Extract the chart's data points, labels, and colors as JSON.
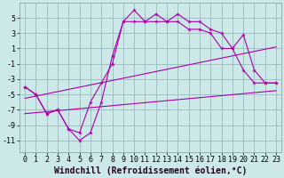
{
  "xlabel": "Windchill (Refroidissement éolien,°C)",
  "bg_color": "#cce8e8",
  "line_color": "#aa00aa",
  "grid_color": "#99bbbb",
  "xlim": [
    -0.5,
    23.5
  ],
  "ylim": [
    -12.5,
    7
  ],
  "yticks": [
    -11,
    -9,
    -7,
    -5,
    -3,
    -1,
    1,
    3,
    5
  ],
  "xticks": [
    0,
    1,
    2,
    3,
    4,
    5,
    6,
    7,
    8,
    9,
    10,
    11,
    12,
    13,
    14,
    15,
    16,
    17,
    18,
    19,
    20,
    21,
    22,
    23
  ],
  "line1_x": [
    0,
    1,
    2,
    3,
    4,
    5,
    6,
    7,
    8,
    9,
    10,
    11,
    12,
    13,
    14,
    15,
    16,
    17,
    18,
    19,
    20,
    21,
    22,
    23
  ],
  "line1_y": [
    -4.0,
    -5.0,
    -7.5,
    -7.0,
    -9.5,
    -11.0,
    -10.0,
    -6.0,
    0.0,
    4.5,
    6.0,
    4.5,
    5.5,
    4.5,
    5.5,
    4.5,
    4.5,
    3.5,
    3.0,
    1.0,
    2.8,
    -1.8,
    -3.5,
    -3.5
  ],
  "line2_x": [
    0,
    1,
    2,
    3,
    4,
    5,
    6,
    7,
    8,
    9,
    10,
    11,
    12,
    13,
    14,
    15,
    16,
    17,
    18,
    19,
    20,
    21,
    22,
    23
  ],
  "line2_y": [
    -4.0,
    -5.0,
    -7.5,
    -7.0,
    -9.5,
    -10.0,
    -6.0,
    -3.5,
    -1.0,
    4.5,
    4.5,
    4.5,
    4.5,
    4.5,
    4.5,
    3.5,
    3.5,
    3.0,
    1.0,
    1.0,
    -1.8,
    -3.5,
    -3.5,
    -3.5
  ],
  "line3_x": [
    0,
    23
  ],
  "line3_y": [
    -5.5,
    1.2
  ],
  "line4_x": [
    0,
    23
  ],
  "line4_y": [
    -7.5,
    -4.5
  ],
  "xlabel_fontsize": 7,
  "tick_fontsize": 6
}
